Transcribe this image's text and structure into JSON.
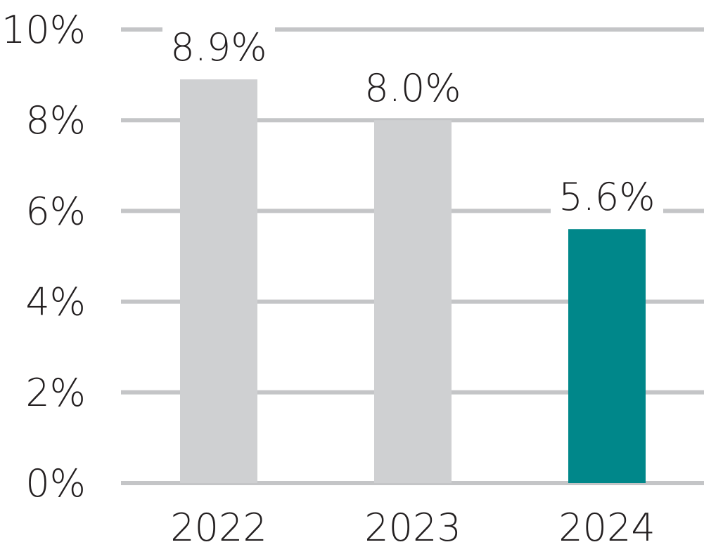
{
  "chart_data": {
    "type": "bar",
    "categories": [
      "2022",
      "2023",
      "2024"
    ],
    "values": [
      8.9,
      8.0,
      5.6
    ],
    "value_labels": [
      "8.9%",
      "8.0%",
      "5.6%"
    ],
    "y_ticks": [
      0,
      2,
      4,
      6,
      8,
      10
    ],
    "y_tick_labels": [
      "0%",
      "2%",
      "4%",
      "6%",
      "8%",
      "10%"
    ],
    "ylim": [
      0,
      10
    ],
    "grid": true,
    "legend": "none",
    "colors": {
      "default_bar": "#cfd0d2",
      "highlight_bar": "#00878a",
      "gridline": "#c4c5c7",
      "text": "#231f20",
      "label_bg": "#ffffff"
    },
    "highlight_index": 2
  }
}
